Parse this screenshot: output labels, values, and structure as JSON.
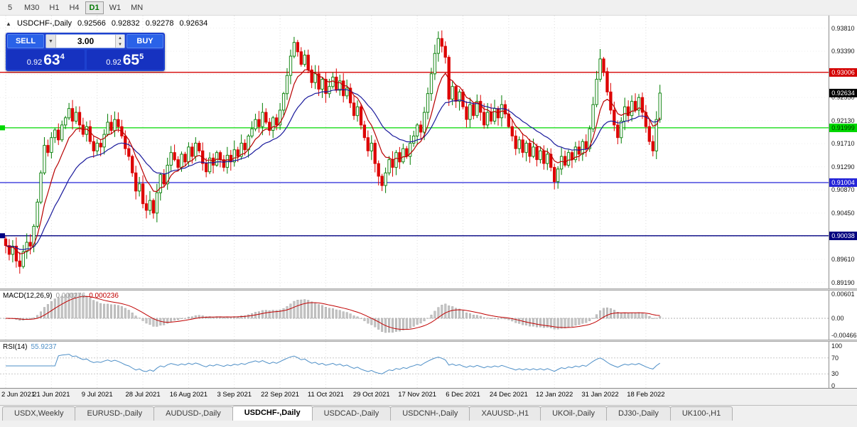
{
  "toolbar": {
    "timeframes": [
      "5",
      "M30",
      "H1",
      "H4",
      "D1",
      "W1",
      "MN"
    ],
    "active": "D1"
  },
  "header": {
    "icon": "▲",
    "title": "USDCHF-,Daily",
    "open": "0.92566",
    "high": "0.92832",
    "low": "0.92278",
    "close": "0.92634"
  },
  "trade_panel": {
    "sell_label": "SELL",
    "buy_label": "BUY",
    "volume": "3.00",
    "dropdown_icon": "▼",
    "spinner_up": "▲",
    "spinner_down": "▼",
    "sell_price_main": "0.92",
    "sell_price_big": "63",
    "sell_price_sup": "4",
    "buy_price_main": "0.92",
    "buy_price_big": "65",
    "buy_price_sup": "5"
  },
  "price_scale": {
    "labels": [
      "0.93810",
      "0.93390",
      "0.92970",
      "0.92550",
      "0.92130",
      "0.91710",
      "0.91290",
      "0.90870",
      "0.90450",
      "0.90030",
      "0.89610",
      "0.89190"
    ]
  },
  "scale_tags": [
    {
      "text": "0.93006",
      "price": 0.93006,
      "bg": "#d40000",
      "fg": "#ffffff"
    },
    {
      "text": "0.92634",
      "price": 0.92634,
      "bg": "#000000",
      "fg": "#ffffff"
    },
    {
      "text": "0.91999",
      "price": 0.91999,
      "bg": "#00d800",
      "fg": "#003300"
    },
    {
      "text": "0.91004",
      "price": 0.91004,
      "bg": "#2525d8",
      "fg": "#ffffff"
    },
    {
      "text": "0.90038",
      "price": 0.90038,
      "bg": "#000080",
      "fg": "#ffffff"
    }
  ],
  "time_axis": [
    "2 Jun 2021",
    "21 Jun 2021",
    "9 Jul 2021",
    "28 Jul 2021",
    "16 Aug 2021",
    "3 Sep 2021",
    "22 Sep 2021",
    "11 Oct 2021",
    "29 Oct 2021",
    "17 Nov 2021",
    "6 Dec 2021",
    "24 Dec 2021",
    "12 Jan 2022",
    "31 Jan 2022",
    "18 Feb 2022"
  ],
  "macd_panel": {
    "label": "MACD(12,26,9)",
    "main_value": "0.000276",
    "signal_value": "0.000236",
    "scale": [
      "0.00601",
      "0.00",
      "-0.00466"
    ]
  },
  "rsi_panel": {
    "label": "RSI(14)",
    "value": "55.9237",
    "scale": [
      "100",
      "70",
      "30",
      "0"
    ]
  },
  "tabs": [
    {
      "label": "USDX,Weekly",
      "active": false
    },
    {
      "label": "EURUSD-,Daily",
      "active": false
    },
    {
      "label": "AUDUSD-,Daily",
      "active": false
    },
    {
      "label": "USDCHF-,Daily",
      "active": true
    },
    {
      "label": "USDCAD-,Daily",
      "active": false
    },
    {
      "label": "USDCNH-,Daily",
      "active": false
    },
    {
      "label": "XAUUSD-,H1",
      "active": false
    },
    {
      "label": "UKOil-,Daily",
      "active": false
    },
    {
      "label": "DJ30-,Daily",
      "active": false
    },
    {
      "label": "UK100-,H1",
      "active": false
    }
  ],
  "chart_data": {
    "type": "candlestick",
    "symbol": "USDCHF-",
    "timeframe": "Daily",
    "title": "USDCHF-,Daily",
    "ylim": [
      0.8917,
      0.9381
    ],
    "bars_per_tick": 13,
    "tick_dates": [
      "2 Jun 2021",
      "21 Jun 2021",
      "9 Jul 2021",
      "28 Jul 2021",
      "16 Aug 2021",
      "3 Sep 2021",
      "22 Sep 2021",
      "11 Oct 2021",
      "29 Oct 2021",
      "17 Nov 2021",
      "6 Dec 2021",
      "24 Dec 2021",
      "12 Jan 2022",
      "31 Jan 2022",
      "18 Feb 2022"
    ],
    "first_open": 0.8998,
    "closes": [
      0.8986,
      0.897,
      0.8985,
      0.8958,
      0.8948,
      0.8975,
      0.8992,
      0.8985,
      0.9021,
      0.9065,
      0.9118,
      0.9168,
      0.9155,
      0.9182,
      0.9196,
      0.9178,
      0.9205,
      0.9218,
      0.9235,
      0.9212,
      0.9228,
      0.9205,
      0.9188,
      0.9202,
      0.9175,
      0.9158,
      0.9172,
      0.9165,
      0.9188,
      0.921,
      0.9195,
      0.9215,
      0.9202,
      0.9185,
      0.9162,
      0.9148,
      0.9118,
      0.9085,
      0.9098,
      0.9062,
      0.905,
      0.9068,
      0.9045,
      0.9082,
      0.9115,
      0.9098,
      0.9132,
      0.9155,
      0.9142,
      0.9128,
      0.9152,
      0.9138,
      0.9165,
      0.9148,
      0.9172,
      0.9158,
      0.9135,
      0.912,
      0.9145,
      0.9132,
      0.9155,
      0.9142,
      0.9128,
      0.915,
      0.9138,
      0.916,
      0.9148,
      0.9172,
      0.916,
      0.9185,
      0.9198,
      0.9215,
      0.9202,
      0.9228,
      0.921,
      0.9195,
      0.9218,
      0.9205,
      0.9232,
      0.9262,
      0.9295,
      0.933,
      0.9355,
      0.9338,
      0.9315,
      0.9332,
      0.9305,
      0.9282,
      0.9298,
      0.927,
      0.9288,
      0.9262,
      0.9275,
      0.9292,
      0.9268,
      0.9285,
      0.9258,
      0.9272,
      0.9245,
      0.9222,
      0.9238,
      0.9205,
      0.9182,
      0.9158,
      0.9172,
      0.9135,
      0.9112,
      0.9095,
      0.9118,
      0.9142,
      0.9128,
      0.9155,
      0.9138,
      0.9162,
      0.9148,
      0.9172,
      0.9185,
      0.9205,
      0.9192,
      0.9228,
      0.9262,
      0.9298,
      0.9335,
      0.9362,
      0.9348,
      0.9328,
      0.9252,
      0.9275,
      0.9248,
      0.9265,
      0.9238,
      0.9215,
      0.9242,
      0.9222,
      0.9248,
      0.9228,
      0.9205,
      0.9228,
      0.9212,
      0.9235,
      0.9218,
      0.9242,
      0.9225,
      0.9202,
      0.9185,
      0.9162,
      0.9178,
      0.9155,
      0.9172,
      0.9148,
      0.9165,
      0.9142,
      0.9158,
      0.9135,
      0.9152,
      0.9128,
      0.9102,
      0.9125,
      0.9148,
      0.9132,
      0.9155,
      0.9142,
      0.9165,
      0.9152,
      0.9175,
      0.9162,
      0.9198,
      0.9242,
      0.9288,
      0.9325,
      0.9302,
      0.9265,
      0.9232,
      0.9205,
      0.9182,
      0.9212,
      0.9238,
      0.9222,
      0.9248,
      0.9232,
      0.9255,
      0.9228,
      0.9202,
      0.9175,
      0.9158,
      0.9215,
      0.9263
    ],
    "extreme_highs": {
      "18": 0.9245,
      "73": 0.9245,
      "82": 0.9365,
      "123": 0.9375,
      "169": 0.9343,
      "186": 0.9278
    },
    "extreme_lows": {
      "4": 0.8935,
      "42": 0.9035,
      "107": 0.9085,
      "156": 0.9088,
      "174": 0.917,
      "184": 0.9148
    },
    "levels": [
      {
        "price": 0.93006,
        "color": "#d40000",
        "left_marker": false
      },
      {
        "price": 0.91999,
        "color": "#00d800",
        "left_marker": true
      },
      {
        "price": 0.91004,
        "color": "#2525d8",
        "left_marker": false
      },
      {
        "price": 0.90038,
        "color": "#000080",
        "left_marker": true
      }
    ],
    "current_price": 0.92634,
    "ohlc_display": {
      "open": 0.92566,
      "high": 0.92832,
      "low": 0.92278,
      "close": 0.92634
    },
    "moving_averages": [
      {
        "period": 8,
        "color": "#b80000"
      },
      {
        "period": 21,
        "color": "#1a1a9c"
      }
    ],
    "indicators": [
      {
        "name": "MACD",
        "params": [
          12,
          26,
          9
        ],
        "last_main": 0.000276,
        "last_signal": 0.000236,
        "scale_max": 0.00601,
        "scale_min": -0.00466
      },
      {
        "name": "RSI",
        "params": [
          14
        ],
        "last": 55.9237,
        "levels": [
          70,
          30
        ]
      }
    ]
  }
}
